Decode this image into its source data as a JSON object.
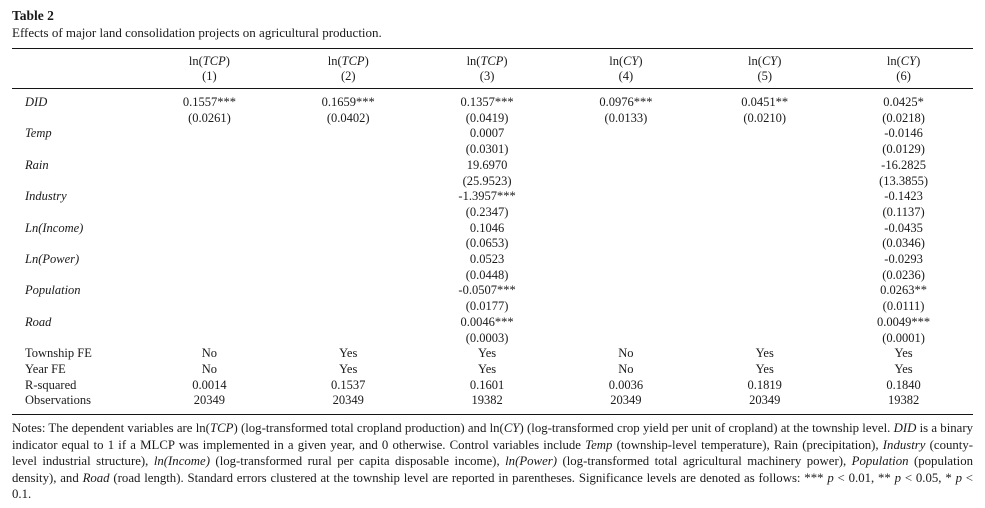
{
  "page": {
    "title": "Table 2",
    "caption": "Effects of major land consolidation projects on agricultural production."
  },
  "table": {
    "columns": [
      {
        "dep_prefix": "ln(",
        "dep_var": "TCP",
        "dep_suffix": ")",
        "number": "(1)"
      },
      {
        "dep_prefix": "ln(",
        "dep_var": "TCP",
        "dep_suffix": ")",
        "number": "(2)"
      },
      {
        "dep_prefix": "ln(",
        "dep_var": "TCP",
        "dep_suffix": ")",
        "number": "(3)"
      },
      {
        "dep_prefix": "ln(",
        "dep_var": "CY",
        "dep_suffix": ")",
        "number": "(4)"
      },
      {
        "dep_prefix": "ln(",
        "dep_var": "CY",
        "dep_suffix": ")",
        "number": "(5)"
      },
      {
        "dep_prefix": "ln(",
        "dep_var": "CY",
        "dep_suffix": ")",
        "number": "(6)"
      }
    ],
    "variable_rows": [
      {
        "label": "DID",
        "coefs": [
          "0.1557***",
          "0.1659***",
          "0.1357***",
          "0.0976***",
          "0.0451**",
          "0.0425*"
        ],
        "ses": [
          "(0.0261)",
          "(0.0402)",
          "(0.0419)",
          "(0.0133)",
          "(0.0210)",
          "(0.0218)"
        ]
      },
      {
        "label": "Temp",
        "coefs": [
          "",
          "",
          "0.0007",
          "",
          "",
          "-0.0146"
        ],
        "ses": [
          "",
          "",
          "(0.0301)",
          "",
          "",
          "(0.0129)"
        ]
      },
      {
        "label": "Rain",
        "coefs": [
          "",
          "",
          "19.6970",
          "",
          "",
          "-16.2825"
        ],
        "ses": [
          "",
          "",
          "(25.9523)",
          "",
          "",
          "(13.3855)"
        ]
      },
      {
        "label": "Industry",
        "coefs": [
          "",
          "",
          "-1.3957***",
          "",
          "",
          "-0.1423"
        ],
        "ses": [
          "",
          "",
          "(0.2347)",
          "",
          "",
          "(0.1137)"
        ]
      },
      {
        "label": "Ln(Income)",
        "coefs": [
          "",
          "",
          "0.1046",
          "",
          "",
          "-0.0435"
        ],
        "ses": [
          "",
          "",
          "(0.0653)",
          "",
          "",
          "(0.0346)"
        ]
      },
      {
        "label": "Ln(Power)",
        "coefs": [
          "",
          "",
          "0.0523",
          "",
          "",
          "-0.0293"
        ],
        "ses": [
          "",
          "",
          "(0.0448)",
          "",
          "",
          "(0.0236)"
        ]
      },
      {
        "label": "Population",
        "coefs": [
          "",
          "",
          "-0.0507***",
          "",
          "",
          "0.0263**"
        ],
        "ses": [
          "",
          "",
          "(0.0177)",
          "",
          "",
          "(0.0111)"
        ]
      },
      {
        "label": "Road",
        "coefs": [
          "",
          "",
          "0.0046***",
          "",
          "",
          "0.0049***"
        ],
        "ses": [
          "",
          "",
          "(0.0003)",
          "",
          "",
          "(0.0001)"
        ]
      }
    ],
    "stat_rows": [
      {
        "label": "Township FE",
        "values": [
          "No",
          "Yes",
          "Yes",
          "No",
          "Yes",
          "Yes"
        ]
      },
      {
        "label": "Year FE",
        "values": [
          "No",
          "Yes",
          "Yes",
          "No",
          "Yes",
          "Yes"
        ]
      },
      {
        "label": "R-squared",
        "values": [
          "0.0014",
          "0.1537",
          "0.1601",
          "0.0036",
          "0.1819",
          "0.1840"
        ]
      },
      {
        "label": "Observations",
        "values": [
          "20349",
          "20349",
          "19382",
          "20349",
          "20349",
          "19382"
        ]
      }
    ]
  },
  "notes": {
    "segments": [
      {
        "t": "Notes: The dependent variables are ln(",
        "i": false
      },
      {
        "t": "TCP",
        "i": true
      },
      {
        "t": ") (log-transformed total cropland production) and ln(",
        "i": false
      },
      {
        "t": "CY",
        "i": true
      },
      {
        "t": ") (log-transformed crop yield per unit of cropland) at the township level. ",
        "i": false
      },
      {
        "t": "DID",
        "i": true
      },
      {
        "t": " is a binary indicator equal to 1 if a MLCP was implemented in a given year, and 0 otherwise. Control variables include ",
        "i": false
      },
      {
        "t": "Temp",
        "i": true
      },
      {
        "t": " (township-level temperature), Rain (precipitation), ",
        "i": false
      },
      {
        "t": "Industry",
        "i": true
      },
      {
        "t": " (county-level industrial structure), ",
        "i": false
      },
      {
        "t": "ln(Income)",
        "i": true
      },
      {
        "t": " (log-transformed rural per capita disposable income), ",
        "i": false
      },
      {
        "t": "ln(Power)",
        "i": true
      },
      {
        "t": " (log-transformed total agricultural machinery power), ",
        "i": false
      },
      {
        "t": "Population",
        "i": true
      },
      {
        "t": " (population density), and ",
        "i": false
      },
      {
        "t": "Road",
        "i": true
      },
      {
        "t": " (road length). Standard errors clustered at the township level are reported in parentheses. Significance levels are denoted as follows: *** ",
        "i": false
      },
      {
        "t": "p",
        "i": true
      },
      {
        "t": " < 0.01, ** ",
        "i": false
      },
      {
        "t": "p",
        "i": true
      },
      {
        "t": " < 0.05, * ",
        "i": false
      },
      {
        "t": "p",
        "i": true
      },
      {
        "t": " < 0.1.",
        "i": false
      }
    ]
  }
}
